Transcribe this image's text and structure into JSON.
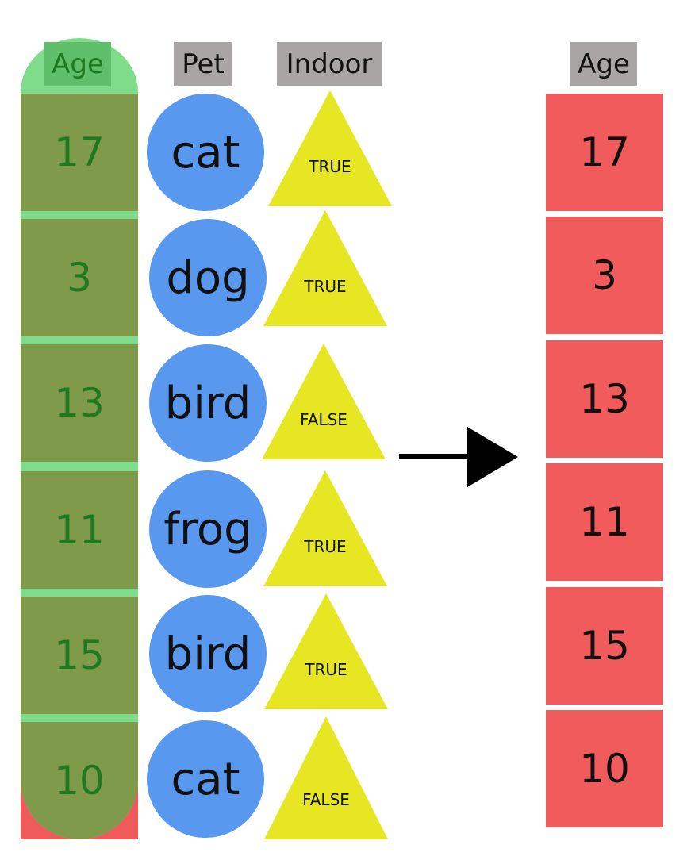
{
  "left": {
    "headers": {
      "age": "Age",
      "pet": "Pet",
      "indoor": "Indoor"
    },
    "rows": [
      {
        "age": "17",
        "pet": "cat",
        "indoor": "TRUE"
      },
      {
        "age": "3",
        "pet": "dog",
        "indoor": "TRUE"
      },
      {
        "age": "13",
        "pet": "bird",
        "indoor": "FALSE"
      },
      {
        "age": "11",
        "pet": "frog",
        "indoor": "TRUE"
      },
      {
        "age": "15",
        "pet": "bird",
        "indoor": "TRUE"
      },
      {
        "age": "10",
        "pet": "cat",
        "indoor": "FALSE"
      }
    ]
  },
  "right": {
    "header": "Age",
    "rows": [
      "17",
      "3",
      "13",
      "11",
      "15",
      "10"
    ]
  },
  "colors": {
    "age_cell": "#7e9a4a",
    "age_highlight": "#7fdc8b",
    "age_text": "#1f7a1f",
    "pet_circle": "#5898ee",
    "indoor_triangle": "#e6e622",
    "output_cell": "#f25b5b",
    "header_bg": "#a9a5a5"
  },
  "icons": {
    "arrow": "arrow-right-icon"
  }
}
